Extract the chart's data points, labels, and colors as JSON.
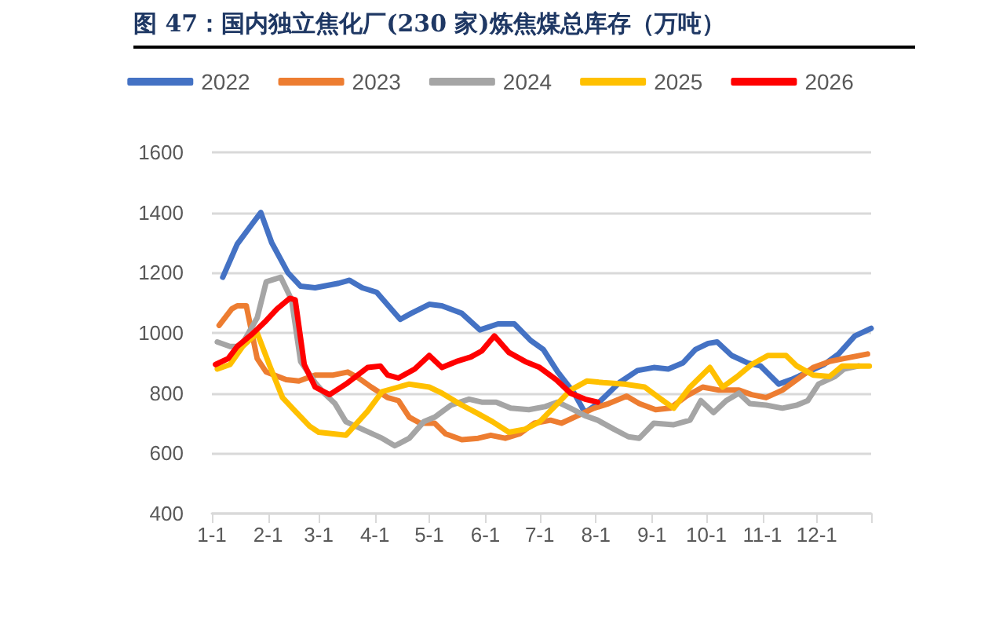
{
  "chart_data": {
    "type": "line",
    "title": "图 47：国内独立焦化厂(230 家)炼焦煤总库存（万吨）",
    "xlim": [
      "--01-01",
      "--12-31"
    ],
    "xticks": [
      {
        "value": "--01-01",
        "label": "1-1"
      },
      {
        "value": "--02-01",
        "label": "2-1"
      },
      {
        "value": "--03-01",
        "label": "3-1"
      },
      {
        "value": "--04-01",
        "label": "4-1"
      },
      {
        "value": "--05-01",
        "label": "5-1"
      },
      {
        "value": "--06-01",
        "label": "6-1"
      },
      {
        "value": "--07-01",
        "label": "7-1"
      },
      {
        "value": "--08-01",
        "label": "8-1"
      },
      {
        "value": "--09-01",
        "label": "9-1"
      },
      {
        "value": "--10-01",
        "label": "10-1"
      },
      {
        "value": "--11-01",
        "label": "11-1"
      },
      {
        "value": "--12-01",
        "label": "12-1"
      },
      {
        "value": "--12-31",
        "label": null
      }
    ],
    "ylim": [
      400,
      1600
    ],
    "yticks": [
      400,
      600,
      800,
      1000,
      1200,
      1400,
      1600
    ],
    "grid": "y",
    "legend": "top",
    "marker": "none",
    "line_style": "solid",
    "series": [
      {
        "name": "2022",
        "color": "#4472c4",
        "x": [
          "--01-07",
          "--01-15",
          "--01-23",
          "--01-28",
          "--02-03",
          "--02-12",
          "--02-19",
          "--02-27",
          "--03-12",
          "--03-18",
          "--03-25",
          "--04-02",
          "--04-15",
          "--04-21",
          "--05-01",
          "--05-08",
          "--05-19",
          "--05-29",
          "--06-08",
          "--06-17",
          "--06-26",
          "--07-03",
          "--07-11",
          "--07-20",
          "--07-26",
          "--08-02",
          "--08-14",
          "--08-24",
          "--09-02",
          "--09-10",
          "--09-18",
          "--09-25",
          "--10-02",
          "--10-07",
          "--10-15",
          "--10-24",
          "--10-31",
          "--11-10",
          "--11-17",
          "--11-26",
          "--12-05",
          "--12-13",
          "--12-22",
          "--12-31"
        ],
        "values": [
          1185,
          1295,
          1360,
          1400,
          1300,
          1200,
          1155,
          1150,
          1165,
          1175,
          1150,
          1135,
          1045,
          1065,
          1095,
          1090,
          1065,
          1010,
          1030,
          1030,
          975,
          945,
          870,
          800,
          735,
          765,
          835,
          875,
          885,
          880,
          900,
          945,
          965,
          970,
          925,
          900,
          890,
          830,
          845,
          870,
          895,
          930,
          990,
          1015
        ]
      },
      {
        "name": "2023",
        "color": "#ed7d31",
        "x": [
          "--01-05",
          "--01-12",
          "--01-15",
          "--01-20",
          "--01-26",
          "--01-31",
          "--02-11",
          "--02-18",
          "--02-27",
          "--03-09",
          "--03-17",
          "--03-23",
          "--03-30",
          "--04-08",
          "--04-14",
          "--04-20",
          "--04-26",
          "--05-04",
          "--05-10",
          "--05-19",
          "--05-28",
          "--06-04",
          "--06-12",
          "--06-20",
          "--06-28",
          "--07-07",
          "--07-13",
          "--07-22",
          "--07-31",
          "--08-08",
          "--08-18",
          "--08-25",
          "--09-03",
          "--09-11",
          "--09-20",
          "--09-29",
          "--10-08",
          "--10-19",
          "--10-26",
          "--11-03",
          "--11-12",
          "--11-20",
          "--11-29",
          "--12-08",
          "--12-16",
          "--12-29"
        ],
        "values": [
          1025,
          1080,
          1090,
          1090,
          915,
          870,
          845,
          840,
          860,
          860,
          870,
          850,
          820,
          785,
          775,
          720,
          700,
          700,
          665,
          645,
          650,
          660,
          650,
          665,
          700,
          710,
          700,
          725,
          750,
          765,
          790,
          765,
          745,
          750,
          790,
          820,
          810,
          810,
          795,
          785,
          810,
          845,
          885,
          905,
          915,
          930
        ]
      },
      {
        "name": "2024",
        "color": "#a5a5a5",
        "x": [
          "--01-04",
          "--01-11",
          "--01-17",
          "--01-26",
          "--01-31",
          "--02-08",
          "--02-14",
          "--02-19",
          "--02-27",
          "--03-04",
          "--03-10",
          "--03-16",
          "--03-25",
          "--04-05",
          "--04-12",
          "--04-20",
          "--04-28",
          "--05-04",
          "--05-13",
          "--05-23",
          "--05-30",
          "--06-07",
          "--06-15",
          "--06-25",
          "--07-04",
          "--07-11",
          "--07-18",
          "--07-26",
          "--08-02",
          "--08-11",
          "--08-19",
          "--08-25",
          "--09-02",
          "--09-13",
          "--09-22",
          "--09-28",
          "--10-05",
          "--10-12",
          "--10-19",
          "--10-25",
          "--11-03",
          "--11-12",
          "--11-20",
          "--11-26",
          "--12-02",
          "--12-11",
          "--12-16",
          "--12-24"
        ],
        "values": [
          970,
          955,
          955,
          1050,
          1170,
          1185,
          1110,
          905,
          835,
          800,
          765,
          705,
          680,
          650,
          625,
          650,
          705,
          720,
          760,
          780,
          770,
          770,
          750,
          745,
          755,
          770,
          750,
          725,
          710,
          680,
          655,
          650,
          700,
          695,
          710,
          775,
          735,
          775,
          800,
          765,
          760,
          750,
          760,
          775,
          830,
          855,
          880,
          890
        ]
      },
      {
        "name": "2025",
        "color": "#ffc000",
        "x": [
          "--01-04",
          "--01-11",
          "--01-18",
          "--01-26",
          "--02-02",
          "--02-09",
          "--02-16",
          "--02-24",
          "--03-01",
          "--03-16",
          "--03-28",
          "--04-05",
          "--04-14",
          "--04-20",
          "--05-01",
          "--05-08",
          "--05-19",
          "--05-27",
          "--06-05",
          "--06-14",
          "--06-23",
          "--07-01",
          "--07-10",
          "--07-18",
          "--07-27",
          "--08-05",
          "--08-17",
          "--08-28",
          "--09-06",
          "--09-13",
          "--09-22",
          "--10-03",
          "--10-10",
          "--10-18",
          "--10-26",
          "--11-04",
          "--11-08",
          "--11-14",
          "--11-20",
          "--11-29",
          "--12-08",
          "--12-15",
          "--12-30"
        ],
        "values": [
          880,
          895,
          955,
          1000,
          890,
          785,
          740,
          690,
          670,
          660,
          740,
          805,
          820,
          830,
          820,
          800,
          760,
          735,
          705,
          670,
          680,
          705,
          760,
          810,
          840,
          835,
          830,
          820,
          780,
          750,
          820,
          885,
          820,
          855,
          895,
          925,
          925,
          925,
          890,
          860,
          855,
          890,
          890
        ]
      },
      {
        "name": "2026",
        "color": "#ff0000",
        "x": [
          "--01-03",
          "--01-10",
          "--01-15",
          "--01-23",
          "--01-30",
          "--02-06",
          "--02-13",
          "--02-16",
          "--02-21",
          "--02-27",
          "--03-07",
          "--03-16",
          "--03-28",
          "--04-04",
          "--04-08",
          "--04-14",
          "--04-23",
          "--05-01",
          "--05-08",
          "--05-16",
          "--05-24",
          "--05-30",
          "--06-06",
          "--06-14",
          "--06-23",
          "--07-01",
          "--07-10",
          "--07-18",
          "--07-26",
          "--08-02"
        ],
        "values": [
          895,
          915,
          955,
          995,
          1035,
          1080,
          1115,
          1110,
          895,
          820,
          795,
          830,
          885,
          890,
          860,
          850,
          880,
          925,
          885,
          905,
          920,
          940,
          990,
          935,
          905,
          885,
          845,
          800,
          780,
          770
        ]
      }
    ]
  }
}
